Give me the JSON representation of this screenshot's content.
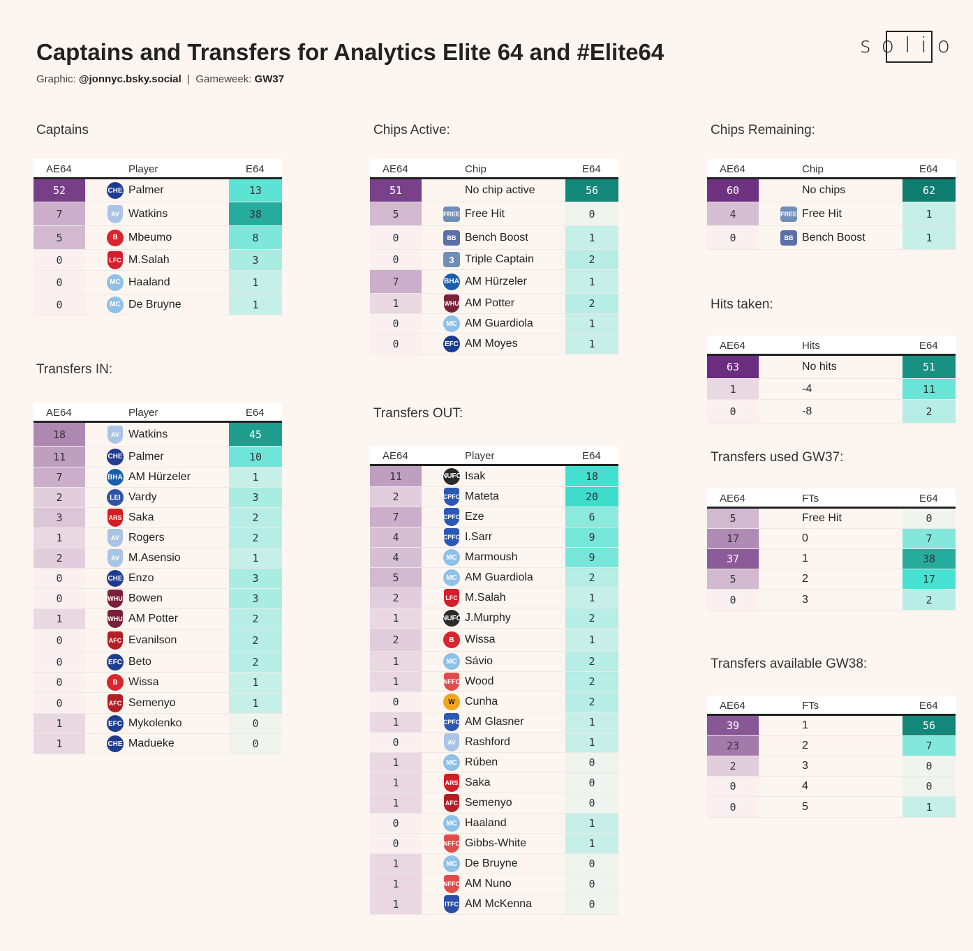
{
  "header": {
    "title": "Captains and Transfers for Analytics Elite 64 and #Elite64",
    "graphic_label": "Graphic:",
    "graphic_handle": "@jonnyc.bsky.social",
    "separator": "|",
    "gameweek_label": "Gameweek:",
    "gameweek_value": "GW37",
    "logo_text": "solio"
  },
  "teams": {
    "CHE": {
      "abbr": "CHE",
      "color": "#1f3c91",
      "name": "chelsea-crest-icon"
    },
    "AVL": {
      "abbr": "AV",
      "color": "#a9c4e6",
      "name": "aston-villa-crest-icon"
    },
    "BRE": {
      "abbr": "B",
      "color": "#d8262e",
      "name": "brentford-crest-icon"
    },
    "LIV": {
      "abbr": "LFC",
      "color": "#d21f2b",
      "name": "liverpool-crest-icon"
    },
    "MCI": {
      "abbr": "MC",
      "color": "#8ec1e8",
      "name": "man-city-crest-icon"
    },
    "BHA": {
      "abbr": "BHA",
      "color": "#1a5eb0",
      "name": "brighton-crest-icon"
    },
    "WHU": {
      "abbr": "WHU",
      "color": "#7a2039",
      "name": "west-ham-crest-icon"
    },
    "EVE": {
      "abbr": "EFC",
      "color": "#1c3d92",
      "name": "everton-crest-icon"
    },
    "LEI": {
      "abbr": "LEI",
      "color": "#2c55a8",
      "name": "leicester-crest-icon"
    },
    "ARS": {
      "abbr": "ARS",
      "color": "#d11f26",
      "name": "arsenal-crest-icon"
    },
    "BOU": {
      "abbr": "AFC",
      "color": "#b31f24",
      "name": "bournemouth-crest-icon"
    },
    "NEW": {
      "abbr": "NUFC",
      "color": "#2a2a2a",
      "name": "newcastle-crest-icon"
    },
    "CRY": {
      "abbr": "CPFC",
      "color": "#2b58b4",
      "name": "crystal-palace-crest-icon"
    },
    "WOL": {
      "abbr": "W",
      "color": "#f0a51d",
      "name": "wolves-crest-icon"
    },
    "NFO": {
      "abbr": "NFFC",
      "color": "#e24b4b",
      "name": "nottingham-forest-crest-icon"
    },
    "IPS": {
      "abbr": "ITFC",
      "color": "#2d4ea6",
      "name": "ipswich-crest-icon"
    },
    "FH": {
      "abbr": "FREE",
      "color": "#6f8fb8",
      "name": "free-hit-chip-icon"
    },
    "BB": {
      "abbr": "BB",
      "color": "#5b6fa8",
      "name": "bench-boost-chip-icon"
    },
    "TC": {
      "abbr": "3",
      "color": "#6f8fb8",
      "name": "triple-captain-chip-icon"
    }
  },
  "scales": {
    "left_max": 63,
    "right_max": 62
  },
  "tables": [
    {
      "id": "captains",
      "section_title": "Captains",
      "headers": [
        "AE64",
        "Player",
        "E64"
      ],
      "rows": [
        {
          "ae": 52,
          "icon": "CHE",
          "name": "Palmer",
          "e": 13
        },
        {
          "ae": 7,
          "icon": "AVL",
          "name": "Watkins",
          "e": 38
        },
        {
          "ae": 5,
          "icon": "BRE",
          "name": "Mbeumo",
          "e": 8
        },
        {
          "ae": 0,
          "icon": "LIV",
          "name": "M.Salah",
          "e": 3
        },
        {
          "ae": 0,
          "icon": "MCI",
          "name": "Haaland",
          "e": 1
        },
        {
          "ae": 0,
          "icon": "MCI",
          "name": "De Bruyne",
          "e": 1
        }
      ]
    },
    {
      "id": "transfers-in",
      "section_title": "Transfers IN:",
      "headers": [
        "AE64",
        "Player",
        "E64"
      ],
      "rows": [
        {
          "ae": 18,
          "icon": "AVL",
          "name": "Watkins",
          "e": 45
        },
        {
          "ae": 11,
          "icon": "CHE",
          "name": "Palmer",
          "e": 10
        },
        {
          "ae": 7,
          "icon": "BHA",
          "name": "AM Hürzeler",
          "e": 1
        },
        {
          "ae": 2,
          "icon": "LEI",
          "name": "Vardy",
          "e": 3
        },
        {
          "ae": 3,
          "icon": "ARS",
          "name": "Saka",
          "e": 2
        },
        {
          "ae": 1,
          "icon": "AVL",
          "name": "Rogers",
          "e": 2
        },
        {
          "ae": 2,
          "icon": "AVL",
          "name": "M.Asensio",
          "e": 1
        },
        {
          "ae": 0,
          "icon": "CHE",
          "name": "Enzo",
          "e": 3
        },
        {
          "ae": 0,
          "icon": "WHU",
          "name": "Bowen",
          "e": 3
        },
        {
          "ae": 1,
          "icon": "WHU",
          "name": "AM Potter",
          "e": 2
        },
        {
          "ae": 0,
          "icon": "BOU",
          "name": "Evanilson",
          "e": 2
        },
        {
          "ae": 0,
          "icon": "EVE",
          "name": "Beto",
          "e": 2
        },
        {
          "ae": 0,
          "icon": "BRE",
          "name": "Wissa",
          "e": 1
        },
        {
          "ae": 0,
          "icon": "BOU",
          "name": "Semenyo",
          "e": 1
        },
        {
          "ae": 1,
          "icon": "EVE",
          "name": "Mykolenko",
          "e": 0
        },
        {
          "ae": 1,
          "icon": "CHE",
          "name": "Madueke",
          "e": 0
        }
      ]
    },
    {
      "id": "chips-active",
      "section_title": "Chips Active:",
      "headers": [
        "AE64",
        "Chip",
        "E64"
      ],
      "rows": [
        {
          "ae": 51,
          "icon": "",
          "name": "No chip active",
          "e": 56
        },
        {
          "ae": 5,
          "icon": "FH",
          "name": "Free Hit",
          "e": 0
        },
        {
          "ae": 0,
          "icon": "BB",
          "name": "Bench Boost",
          "e": 1
        },
        {
          "ae": 0,
          "icon": "TC",
          "name": "Triple Captain",
          "e": 2
        },
        {
          "ae": 7,
          "icon": "BHA",
          "name": "AM Hürzeler",
          "e": 1
        },
        {
          "ae": 1,
          "icon": "WHU",
          "name": "AM Potter",
          "e": 2
        },
        {
          "ae": 0,
          "icon": "MCI",
          "name": "AM Guardiola",
          "e": 1
        },
        {
          "ae": 0,
          "icon": "EVE",
          "name": "AM Moyes",
          "e": 1
        }
      ]
    },
    {
      "id": "transfers-out",
      "section_title": "Transfers OUT:",
      "headers": [
        "AE64",
        "Player",
        "E64"
      ],
      "rows": [
        {
          "ae": 11,
          "icon": "NEW",
          "name": "Isak",
          "e": 18
        },
        {
          "ae": 2,
          "icon": "CRY",
          "name": "Mateta",
          "e": 20
        },
        {
          "ae": 7,
          "icon": "CRY",
          "name": "Eze",
          "e": 6
        },
        {
          "ae": 4,
          "icon": "CRY",
          "name": "I.Sarr",
          "e": 9
        },
        {
          "ae": 4,
          "icon": "MCI",
          "name": "Marmoush",
          "e": 9
        },
        {
          "ae": 5,
          "icon": "MCI",
          "name": "AM Guardiola",
          "e": 2
        },
        {
          "ae": 2,
          "icon": "LIV",
          "name": "M.Salah",
          "e": 1
        },
        {
          "ae": 1,
          "icon": "NEW",
          "name": "J.Murphy",
          "e": 2
        },
        {
          "ae": 2,
          "icon": "BRE",
          "name": "Wissa",
          "e": 1
        },
        {
          "ae": 1,
          "icon": "MCI",
          "name": "Sávio",
          "e": 2
        },
        {
          "ae": 1,
          "icon": "NFO",
          "name": "Wood",
          "e": 2
        },
        {
          "ae": 0,
          "icon": "WOL",
          "name": "Cunha",
          "e": 2
        },
        {
          "ae": 1,
          "icon": "CRY",
          "name": "AM Glasner",
          "e": 1
        },
        {
          "ae": 0,
          "icon": "AVL",
          "name": "Rashford",
          "e": 1
        },
        {
          "ae": 1,
          "icon": "MCI",
          "name": "Rúben",
          "e": 0
        },
        {
          "ae": 1,
          "icon": "ARS",
          "name": "Saka",
          "e": 0
        },
        {
          "ae": 1,
          "icon": "BOU",
          "name": "Semenyo",
          "e": 0
        },
        {
          "ae": 0,
          "icon": "MCI",
          "name": "Haaland",
          "e": 1
        },
        {
          "ae": 0,
          "icon": "NFO",
          "name": "Gibbs-White",
          "e": 1
        },
        {
          "ae": 1,
          "icon": "MCI",
          "name": "De Bruyne",
          "e": 0
        },
        {
          "ae": 1,
          "icon": "NFO",
          "name": "AM Nuno",
          "e": 0
        },
        {
          "ae": 1,
          "icon": "IPS",
          "name": "AM McKenna",
          "e": 0
        }
      ]
    },
    {
      "id": "chips-remaining",
      "section_title": "Chips Remaining:",
      "headers": [
        "AE64",
        "Chip",
        "E64"
      ],
      "rows": [
        {
          "ae": 60,
          "icon": "",
          "name": "No chips",
          "e": 62
        },
        {
          "ae": 4,
          "icon": "FH",
          "name": "Free Hit",
          "e": 1
        },
        {
          "ae": 0,
          "icon": "BB",
          "name": "Bench Boost",
          "e": 1
        }
      ]
    },
    {
      "id": "hits-taken",
      "section_title": "Hits taken:",
      "headers": [
        "AE64",
        "Hits",
        "E64"
      ],
      "rows": [
        {
          "ae": 63,
          "icon": "",
          "name": "No hits",
          "e": 51
        },
        {
          "ae": 1,
          "icon": "",
          "name": "-4",
          "e": 11
        },
        {
          "ae": 0,
          "icon": "",
          "name": "-8",
          "e": 2
        }
      ]
    },
    {
      "id": "transfers-used",
      "section_title": "Transfers used GW37:",
      "headers": [
        "AE64",
        "FTs",
        "E64"
      ],
      "rows": [
        {
          "ae": 5,
          "icon": "",
          "name": "Free Hit",
          "e": 0
        },
        {
          "ae": 17,
          "icon": "",
          "name": "0",
          "e": 7
        },
        {
          "ae": 37,
          "icon": "",
          "name": "1",
          "e": 38
        },
        {
          "ae": 5,
          "icon": "",
          "name": "2",
          "e": 17
        },
        {
          "ae": 0,
          "icon": "",
          "name": "3",
          "e": 2
        }
      ]
    },
    {
      "id": "transfers-available",
      "section_title": "Transfers available GW38:",
      "headers": [
        "AE64",
        "FTs",
        "E64"
      ],
      "rows": [
        {
          "ae": 39,
          "icon": "",
          "name": "1",
          "e": 56
        },
        {
          "ae": 23,
          "icon": "",
          "name": "2",
          "e": 7
        },
        {
          "ae": 2,
          "icon": "",
          "name": "3",
          "e": 0
        },
        {
          "ae": 0,
          "icon": "",
          "name": "4",
          "e": 0
        },
        {
          "ae": 0,
          "icon": "",
          "name": "5",
          "e": 1
        }
      ]
    }
  ]
}
